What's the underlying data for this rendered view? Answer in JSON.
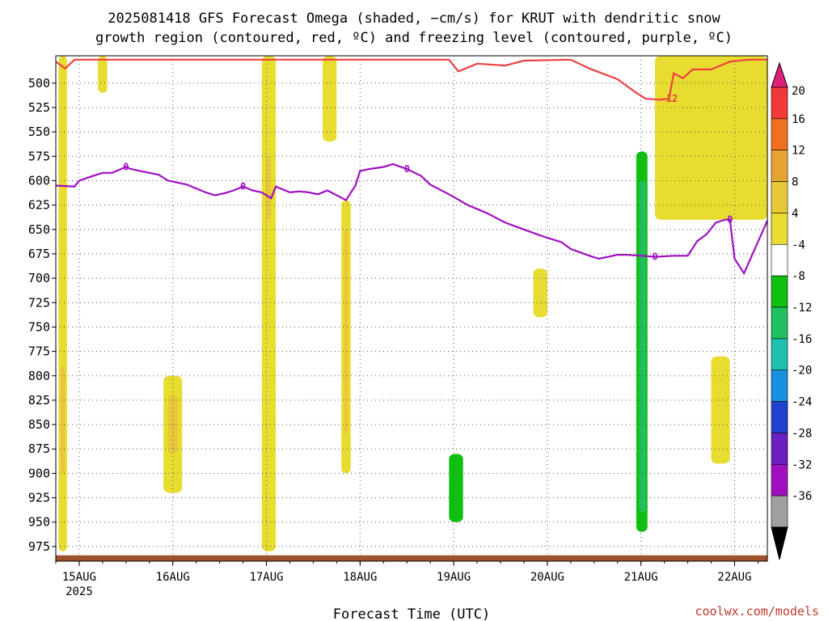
{
  "chart_data": {
    "type": "heatmap",
    "title_line1": "2025081418 GFS Forecast Omega (shaded, −cm/s) for KRUT with dendritic snow",
    "title_line2": "growth region (contoured, red, ºC) and freezing level (contoured, purple, ºC)",
    "xlabel": "Forecast Time (UTC)",
    "ylabel": "",
    "xlim": [
      0,
      7.6
    ],
    "ylim": [
      990,
      472
    ],
    "yticks": [
      500,
      525,
      550,
      575,
      600,
      625,
      650,
      675,
      700,
      725,
      750,
      775,
      800,
      825,
      850,
      875,
      900,
      925,
      950,
      975
    ],
    "xticks": [
      {
        "x": 0.25,
        "label": "15AUG",
        "sublabel": "2025"
      },
      {
        "x": 1.25,
        "label": "16AUG",
        "sublabel": ""
      },
      {
        "x": 2.25,
        "label": "17AUG",
        "sublabel": ""
      },
      {
        "x": 3.25,
        "label": "18AUG",
        "sublabel": ""
      },
      {
        "x": 4.25,
        "label": "19AUG",
        "sublabel": ""
      },
      {
        "x": 5.25,
        "label": "20AUG",
        "sublabel": ""
      },
      {
        "x": 6.25,
        "label": "21AUG",
        "sublabel": ""
      },
      {
        "x": 7.25,
        "label": "22AUG",
        "sublabel": ""
      }
    ],
    "grid": true,
    "colorbar": {
      "levels": [
        20,
        16,
        12,
        8,
        4,
        -4,
        -8,
        -12,
        -16,
        -20,
        -24,
        -28,
        -32,
        -36
      ],
      "colors": [
        "#f03a3a",
        "#f07020",
        "#e6a530",
        "#e8c838",
        "#e8dc30",
        "#ffffff",
        "#10c010",
        "#20c060",
        "#20c0b0",
        "#1890e0",
        "#2040d0",
        "#6a20c0",
        "#a010c0",
        "#a0a0a0"
      ],
      "top_color": "#e0207a",
      "bottom_color": "#000000"
    },
    "freezing_level": {
      "label": "0",
      "color": "#a010c0",
      "x": [
        0,
        0.2,
        0.25,
        0.4,
        0.5,
        0.6,
        0.75,
        0.8,
        0.9,
        1.0,
        1.1,
        1.2,
        1.4,
        1.6,
        1.7,
        1.8,
        1.9,
        2.0,
        2.1,
        2.2,
        2.3,
        2.35,
        2.4,
        2.5,
        2.6,
        2.7,
        2.8,
        2.9,
        3.0,
        3.1,
        3.2,
        3.25,
        3.35,
        3.5,
        3.6,
        3.75,
        3.9,
        4.0,
        4.2,
        4.4,
        4.6,
        4.8,
        5.0,
        5.2,
        5.4,
        5.5,
        5.7,
        5.8,
        6.0,
        6.1,
        6.25,
        6.4,
        6.6,
        6.75,
        6.85,
        6.95,
        7.05,
        7.15,
        7.2,
        7.25,
        7.35,
        7.6
      ],
      "y": [
        605,
        606,
        600,
        595,
        592,
        592,
        586,
        588,
        590,
        592,
        594,
        600,
        604,
        612,
        615,
        613,
        610,
        606,
        610,
        612,
        618,
        606,
        608,
        612,
        611,
        612,
        614,
        610,
        615,
        620,
        605,
        590,
        588,
        586,
        583,
        588,
        595,
        604,
        614,
        625,
        633,
        643,
        650,
        657,
        663,
        670,
        677,
        680,
        676,
        676,
        677,
        678,
        677,
        677,
        662,
        655,
        643,
        640,
        640,
        680,
        695,
        641
      ]
    },
    "dgz_minus12": {
      "label": "-12",
      "color": "#f04040",
      "x": [
        0,
        0.1,
        0.2,
        4.2,
        4.3,
        4.5,
        4.8,
        5.0,
        5.5,
        5.7,
        6.0,
        6.2,
        6.3,
        6.45,
        6.55,
        6.6,
        6.7,
        6.8,
        7.0,
        7.2,
        7.4,
        7.6
      ],
      "y": [
        478,
        485,
        476,
        476,
        488,
        480,
        482,
        477,
        476,
        485,
        496,
        510,
        516,
        517,
        516,
        490,
        495,
        486,
        486,
        478,
        476,
        476
      ]
    },
    "terrain": {
      "color": "#a0522d",
      "surface_pressure": 984
    },
    "omega_regions": [
      {
        "level": 4,
        "x": [
          0.03,
          0.12
        ],
        "p": [
          472,
          980
        ]
      },
      {
        "level": 8,
        "x": [
          0.05,
          0.1
        ],
        "p": [
          790,
          900
        ]
      },
      {
        "level": 4,
        "x": [
          0.45,
          0.55
        ],
        "p": [
          472,
          510
        ]
      },
      {
        "level": 4,
        "x": [
          1.15,
          1.35
        ],
        "p": [
          800,
          920
        ]
      },
      {
        "level": 8,
        "x": [
          1.2,
          1.3
        ],
        "p": [
          820,
          880
        ]
      },
      {
        "level": -4,
        "x": [
          1.45,
          1.55
        ],
        "p": [
          830,
          900
        ]
      },
      {
        "level": 4,
        "x": [
          2.2,
          2.35
        ],
        "p": [
          472,
          980
        ]
      },
      {
        "level": 8,
        "x": [
          2.25,
          2.3
        ],
        "p": [
          575,
          640
        ]
      },
      {
        "level": -4,
        "x": [
          2.45,
          2.6
        ],
        "p": [
          600,
          960
        ]
      },
      {
        "level": 4,
        "x": [
          2.85,
          3.0
        ],
        "p": [
          472,
          560
        ]
      },
      {
        "level": -4,
        "x": [
          3.0,
          3.15
        ],
        "p": [
          472,
          980
        ]
      },
      {
        "level": 4,
        "x": [
          3.05,
          3.15
        ],
        "p": [
          620,
          900
        ]
      },
      {
        "level": 8,
        "x": [
          3.08,
          3.12
        ],
        "p": [
          650,
          860
        ]
      },
      {
        "level": -4,
        "x": [
          4.1,
          4.45
        ],
        "p": [
          840,
          985
        ]
      },
      {
        "level": -8,
        "x": [
          4.2,
          4.35
        ],
        "p": [
          880,
          950
        ]
      },
      {
        "level": -4,
        "x": [
          5.3,
          5.5
        ],
        "p": [
          472,
          560
        ]
      },
      {
        "level": 4,
        "x": [
          5.1,
          5.25
        ],
        "p": [
          690,
          740
        ]
      },
      {
        "level": -4,
        "x": [
          6.15,
          6.35
        ],
        "p": [
          540,
          965
        ]
      },
      {
        "level": -8,
        "x": [
          6.2,
          6.32
        ],
        "p": [
          570,
          960
        ]
      },
      {
        "level": -12,
        "x": [
          6.23,
          6.3
        ],
        "p": [
          600,
          940
        ]
      },
      {
        "level": 4,
        "x": [
          6.4,
          7.6
        ],
        "p": [
          472,
          640
        ]
      },
      {
        "level": 4,
        "x": [
          7.0,
          7.2
        ],
        "p": [
          780,
          890
        ]
      },
      {
        "level": -4,
        "x": [
          7.2,
          7.5
        ],
        "p": [
          750,
          960
        ]
      }
    ]
  },
  "watermark": "coolwx.com/models"
}
